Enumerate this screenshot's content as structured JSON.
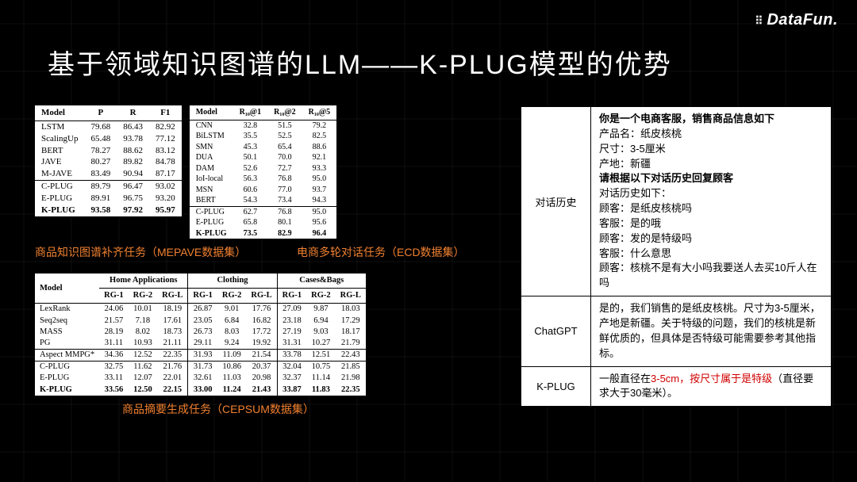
{
  "logo": "DataFun.",
  "title": "基于领域知识图谱的LLM——K-PLUG模型的优势",
  "caption1": "商品知识图谱补齐任务（MEPAVE数据集）",
  "caption2": "电商多轮对话任务（ECD数据集）",
  "caption3": "商品摘要生成任务（CEPSUM数据集）",
  "table1": {
    "headers": [
      "Model",
      "P",
      "R",
      "F1"
    ],
    "groups": [
      [
        [
          "LSTM",
          "79.68",
          "86.43",
          "82.92"
        ],
        [
          "ScalingUp",
          "65.48",
          "93.78",
          "77.12"
        ],
        [
          "BERT",
          "78.27",
          "88.62",
          "83.12"
        ],
        [
          "JAVE",
          "80.27",
          "89.82",
          "84.78"
        ],
        [
          "M-JAVE",
          "83.49",
          "90.94",
          "87.17"
        ]
      ],
      [
        [
          "C-PLUG",
          "89.79",
          "96.47",
          "93.02"
        ],
        [
          "E-PLUG",
          "89.91",
          "96.75",
          "93.20"
        ],
        [
          "K-PLUG",
          "93.58",
          "97.92",
          "95.97"
        ]
      ]
    ],
    "bold_last": true
  },
  "table2": {
    "headers": [
      "Model",
      "R₁₀@1",
      "R₁₀@2",
      "R₁₀@5"
    ],
    "groups": [
      [
        [
          "CNN",
          "32.8",
          "51.5",
          "79.2"
        ],
        [
          "BiLSTM",
          "35.5",
          "52.5",
          "82.5"
        ],
        [
          "SMN",
          "45.3",
          "65.4",
          "88.6"
        ],
        [
          "DUA",
          "50.1",
          "70.0",
          "92.1"
        ],
        [
          "DAM",
          "52.6",
          "72.7",
          "93.3"
        ],
        [
          "IoI-local",
          "56.3",
          "76.8",
          "95.0"
        ],
        [
          "MSN",
          "60.6",
          "77.0",
          "93.7"
        ],
        [
          "BERT",
          "54.3",
          "73.4",
          "94.3"
        ]
      ],
      [
        [
          "C-PLUG",
          "62.7",
          "76.8",
          "95.0"
        ],
        [
          "E-PLUG",
          "65.8",
          "80.1",
          "95.6"
        ],
        [
          "K-PLUG",
          "73.5",
          "82.9",
          "96.4"
        ]
      ]
    ],
    "bold_last": true
  },
  "table3": {
    "groups_header": [
      "Home Applications",
      "Clothing",
      "Cases&Bags"
    ],
    "sub_headers": [
      "RG-1",
      "RG-2",
      "RG-L"
    ],
    "model_header": "Model",
    "sections": [
      [
        [
          "LexRank",
          "24.06",
          "10.01",
          "18.19",
          "26.87",
          "9.01",
          "17.76",
          "27.09",
          "9.87",
          "18.03"
        ],
        [
          "Seq2seq",
          "21.57",
          "7.18",
          "17.61",
          "23.05",
          "6.84",
          "16.82",
          "23.18",
          "6.94",
          "17.29"
        ],
        [
          "MASS",
          "28.19",
          "8.02",
          "18.73",
          "26.73",
          "8.03",
          "17.72",
          "27.19",
          "9.03",
          "18.17"
        ],
        [
          "PG",
          "31.11",
          "10.93",
          "21.11",
          "29.11",
          "9.24",
          "19.92",
          "31.31",
          "10.27",
          "21.79"
        ]
      ],
      [
        [
          "Aspect MMPG*",
          "34.36",
          "12.52",
          "22.35",
          "31.93",
          "11.09",
          "21.54",
          "33.78",
          "12.51",
          "22.43"
        ]
      ],
      [
        [
          "C-PLUG",
          "32.75",
          "11.62",
          "21.76",
          "31.73",
          "10.86",
          "20.37",
          "32.04",
          "10.75",
          "21.85"
        ],
        [
          "E-PLUG",
          "33.11",
          "12.07",
          "22.01",
          "32.61",
          "11.03",
          "20.98",
          "32.37",
          "11.14",
          "21.98"
        ],
        [
          "K-PLUG",
          "33.56",
          "12.50",
          "22.15",
          "33.00",
          "11.24",
          "21.43",
          "33.87",
          "11.83",
          "22.35"
        ]
      ]
    ],
    "bold_last": true
  },
  "dialog": {
    "label": "对话历史",
    "intro_bold1": "你是一个电商客服，销售商品信息如下",
    "lines1": [
      "产品名：纸皮核桃",
      "尺寸：3-5厘米",
      "产地：新疆"
    ],
    "intro_bold2": "请根据以下对话历史回复顾客",
    "lines2": [
      "对话历史如下：",
      "顾客：是纸皮核桃吗",
      "客服：是的哦",
      "顾客：发的是特级吗",
      "客服：什么意思",
      "顾客：核桃不是有大小吗我要送人去买10斤人在吗"
    ]
  },
  "chatgpt": {
    "label": "ChatGPT",
    "text": "是的，我们销售的是纸皮核桃。尺寸为3-5厘米，产地是新疆。关于特级的问题，我们的核桃是新鲜优质的，但具体是否特级可能需要参考其他指标。"
  },
  "kplug": {
    "label": "K-PLUG",
    "prefix": "一般直径在",
    "red": "3-5cm，按尺寸属于是特级",
    "suffix": "（直径要求大于30毫米）。"
  }
}
